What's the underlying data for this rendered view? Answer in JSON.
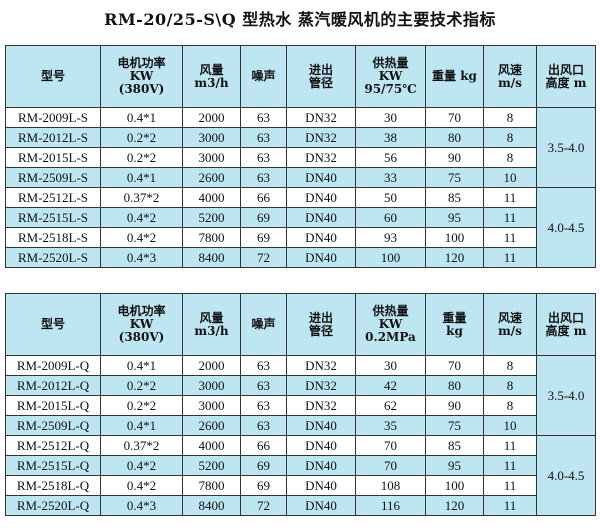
{
  "title": "RM-20/25-S\\Q 型热水 蒸汽暖风机的主要技术指标",
  "colors": {
    "header_bg": "#bde5f2",
    "alt_row_bg": "#bde5f2",
    "border": "#333333"
  },
  "tables": [
    {
      "headers": [
        [
          "型号"
        ],
        [
          "电机功率",
          "KW",
          "(380V)"
        ],
        [
          "风量",
          "m3/h"
        ],
        [
          "噪声"
        ],
        [
          "进出",
          "管径"
        ],
        [
          "供热量",
          "KW",
          "95/75℃"
        ],
        [
          "重量 kg"
        ],
        [
          "风速",
          "m/s"
        ],
        [
          "出风口",
          "高度 m"
        ]
      ],
      "rows": [
        [
          "RM-2009L-S",
          "0.4*1",
          "2000",
          "63",
          "DN32",
          "30",
          "70",
          "8"
        ],
        [
          "RM-2012L-S",
          "0.2*2",
          "3000",
          "63",
          "DN32",
          "38",
          "80",
          "8"
        ],
        [
          "RM-2015L-S",
          "0.2*2",
          "3000",
          "63",
          "DN32",
          "56",
          "90",
          "8"
        ],
        [
          "RM-2509L-S",
          "0.4*1",
          "2600",
          "63",
          "DN40",
          "33",
          "75",
          "10"
        ],
        [
          "RM-2512L-S",
          "0.37*2",
          "4000",
          "66",
          "DN40",
          "50",
          "85",
          "11"
        ],
        [
          "RM-2515L-S",
          "0.4*2",
          "5200",
          "69",
          "DN40",
          "60",
          "95",
          "11"
        ],
        [
          "RM-2518L-S",
          "0.4*2",
          "7800",
          "69",
          "DN40",
          "93",
          "100",
          "11"
        ],
        [
          "RM-2520L-S",
          "0.4*3",
          "8400",
          "72",
          "DN40",
          "100",
          "120",
          "11"
        ]
      ],
      "heights": [
        "3.5-4.0",
        "4.0-4.5"
      ]
    },
    {
      "headers": [
        [
          "型号"
        ],
        [
          "电机功率",
          "KW",
          "(380V)"
        ],
        [
          "风量",
          "m3/h"
        ],
        [
          "噪声"
        ],
        [
          "进出",
          "管径"
        ],
        [
          "供热量",
          "KW",
          "0.2MPa"
        ],
        [
          "重量",
          "kg"
        ],
        [
          "风速",
          "m/s"
        ],
        [
          "出风口",
          "高度 m"
        ]
      ],
      "rows": [
        [
          "RM-2009L-Q",
          "0.4*1",
          "2000",
          "63",
          "DN32",
          "30",
          "70",
          "8"
        ],
        [
          "RM-2012L-Q",
          "0.2*2",
          "3000",
          "63",
          "DN32",
          "42",
          "80",
          "8"
        ],
        [
          "RM-2015L-Q",
          "0.2*2",
          "3000",
          "63",
          "DN32",
          "62",
          "90",
          "8"
        ],
        [
          "RM-2509L-Q",
          "0.4*1",
          "2600",
          "63",
          "DN40",
          "35",
          "75",
          "10"
        ],
        [
          "RM-2512L-Q",
          "0.37*2",
          "4000",
          "66",
          "DN40",
          "70",
          "85",
          "11"
        ],
        [
          "RM-2515L-Q",
          "0.4*2",
          "5200",
          "69",
          "DN40",
          "70",
          "95",
          "11"
        ],
        [
          "RM-2518L-Q",
          "0.4*2",
          "7800",
          "69",
          "DN40",
          "108",
          "100",
          "11"
        ],
        [
          "RM-2520L-Q",
          "0.4*3",
          "8400",
          "72",
          "DN40",
          "116",
          "120",
          "11"
        ]
      ],
      "heights": [
        "3.5-4.0",
        "4.0-4.5"
      ]
    }
  ]
}
